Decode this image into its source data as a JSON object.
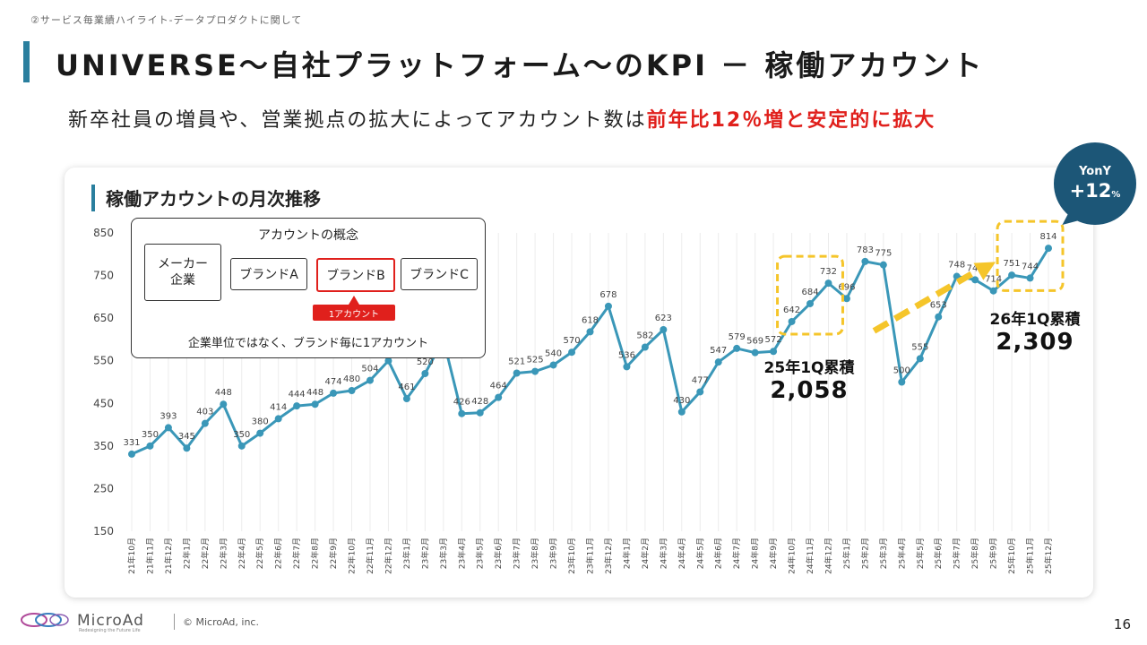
{
  "header": {
    "breadcrumb": "②サービス毎業績ハイライト‐データプロダクトに関して",
    "title": "UNIVERSE～自社プラットフォーム～のKPI － 稼働アカウント",
    "subtitle_plain": "新卒社員の増員や、営業拠点の拡大によってアカウント数は",
    "subtitle_highlight": "前年比12％増と安定的に拡大"
  },
  "card": {
    "title": "稼働アカウントの月次推移"
  },
  "concept": {
    "title": "アカウントの概念",
    "maker_line1": "メーカー",
    "maker_line2": "企業",
    "brand_a": "ブランドA",
    "brand_b": "ブランドB",
    "brand_c": "ブランドC",
    "tag": "1アカウント",
    "note": "企業単位ではなく、ブランド毎に1アカウント"
  },
  "annotations": {
    "cum_2025_label": "25年1Q累積",
    "cum_2025_value": "2,058",
    "cum_2026_label": "26年1Q累積",
    "cum_2026_value": "2,309",
    "yony_label": "YonY",
    "yony_value": "+12",
    "yony_unit": "%"
  },
  "footer": {
    "brand": "MicroAd",
    "tagline": "Redesigning the Future Life",
    "copyright": "© MicroAd, inc.",
    "page": "16"
  },
  "colors": {
    "line": "#3a97b8",
    "highlight": "#e0201c",
    "accent_box": "#f5c52a",
    "arrow": "#f5c52a",
    "bubble": "#1c5677"
  },
  "chart_data": {
    "type": "line",
    "categories": [
      "21年10月",
      "21年11月",
      "21年12月",
      "22年1月",
      "22年2月",
      "22年3月",
      "22年4月",
      "22年5月",
      "22年6月",
      "22年7月",
      "22年8月",
      "22年9月",
      "22年10月",
      "22年11月",
      "22年12月",
      "23年1月",
      "23年2月",
      "23年3月",
      "23年4月",
      "23年5月",
      "23年6月",
      "23年7月",
      "23年8月",
      "23年9月",
      "23年10月",
      "23年11月",
      "23年12月",
      "24年1月",
      "24年2月",
      "24年3月",
      "24年4月",
      "24年5月",
      "24年6月",
      "24年7月",
      "24年8月",
      "24年9月",
      "24年10月",
      "24年11月",
      "24年12月",
      "25年1月",
      "25年2月",
      "25年3月",
      "25年4月",
      "25年5月",
      "25年6月",
      "25年7月",
      "25年8月",
      "25年9月",
      "25年10月",
      "25年11月",
      "25年12月"
    ],
    "values": [
      331,
      350,
      393,
      345,
      403,
      448,
      350,
      380,
      414,
      444,
      448,
      474,
      480,
      504,
      550,
      461,
      520,
      600,
      426,
      428,
      464,
      521,
      525,
      540,
      570,
      618,
      678,
      536,
      582,
      623,
      430,
      477,
      547,
      579,
      569,
      572,
      642,
      684,
      732,
      696,
      783,
      775,
      500,
      555,
      653,
      748,
      740,
      714,
      751,
      744,
      814
    ],
    "data_labels": [
      "331",
      "350",
      "393",
      "345",
      "403",
      "448",
      "350",
      "380",
      "414",
      "444",
      "448",
      "474",
      "480",
      "504",
      "",
      "461",
      "520",
      "",
      "426",
      "428",
      "464",
      "521",
      "525",
      "540",
      "570",
      "618",
      "678",
      "536",
      "582",
      "623",
      "430",
      "477",
      "547",
      "579",
      "569",
      "572",
      "642",
      "684",
      "732",
      "696",
      "783",
      "775",
      "500",
      "555",
      "653",
      "748",
      "740",
      "714",
      "751",
      "744",
      "814"
    ],
    "yticks": [
      "150",
      "250",
      "350",
      "450",
      "550",
      "650",
      "750",
      "850"
    ],
    "ylim": [
      150,
      850
    ],
    "grid": "vertical",
    "highlight_ranges": [
      [
        "24年10月",
        "24年12月"
      ],
      [
        "25年10月",
        "25年12月"
      ]
    ]
  }
}
